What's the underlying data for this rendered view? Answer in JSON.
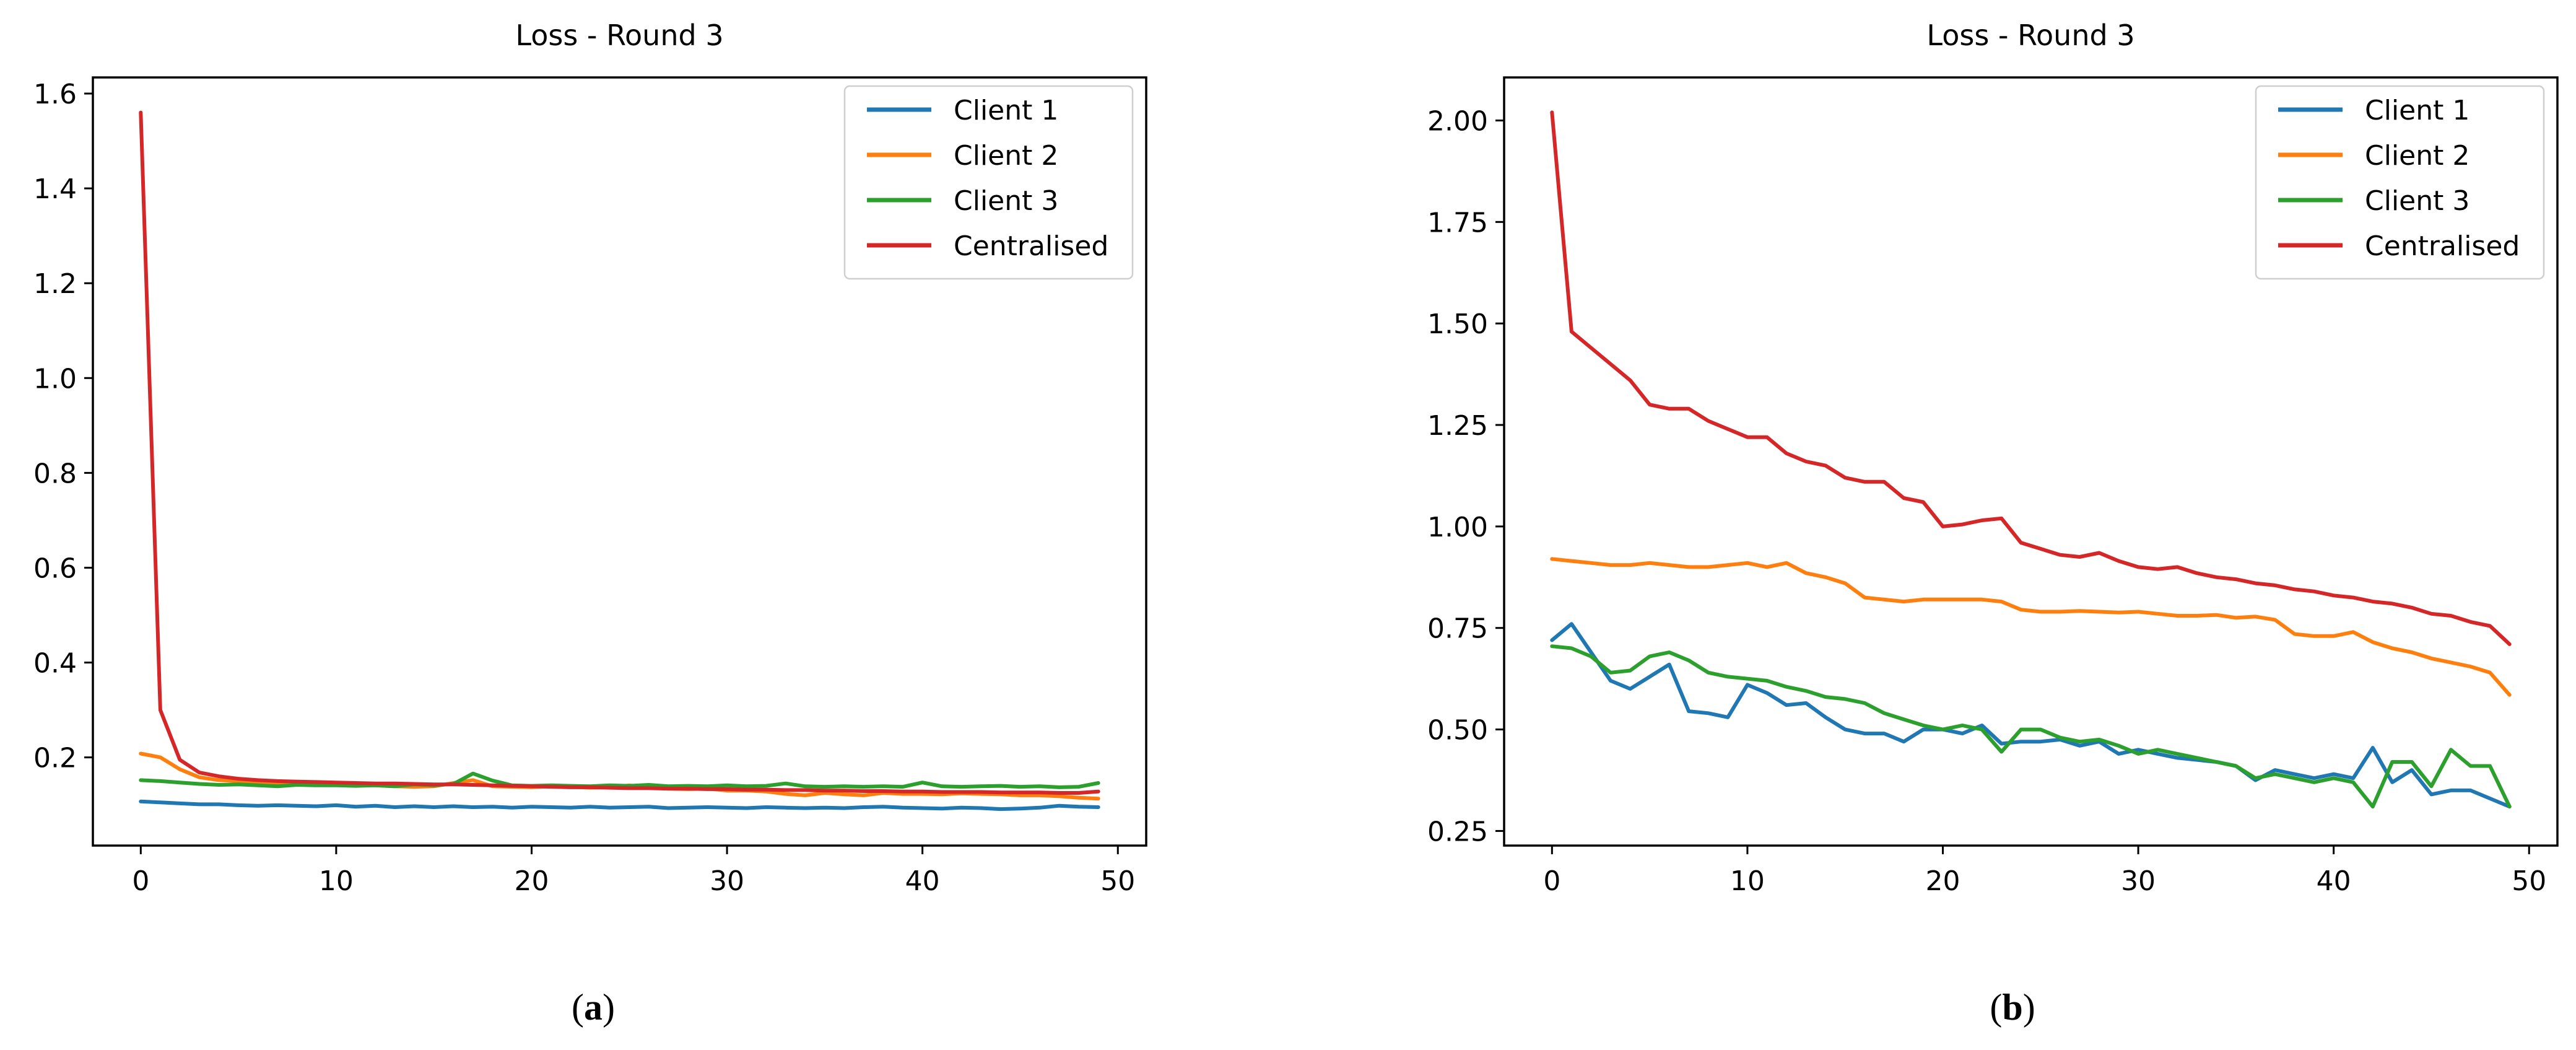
{
  "page": {
    "background": "#ffffff"
  },
  "captions": [
    {
      "pre": "(",
      "letter": "a",
      "post": ")"
    },
    {
      "pre": "(",
      "letter": "b",
      "post": ")"
    }
  ],
  "chart_data": [
    {
      "type": "line",
      "panel": "a",
      "title": "Loss - Round 3",
      "xlabel": "",
      "ylabel": "",
      "grid": false,
      "legend": {
        "position": "upper right",
        "entries": [
          "Client 1",
          "Client 2",
          "Client 3",
          "Centralised"
        ]
      },
      "xlim": [
        -2.45,
        51.45
      ],
      "ylim": [
        0.014,
        1.634
      ],
      "x_ticks": [
        0,
        10,
        20,
        30,
        40,
        50
      ],
      "y_ticks": [
        0.2,
        0.4,
        0.6,
        0.8,
        1.0,
        1.2,
        1.4,
        1.6
      ],
      "y_tick_decimals": 1,
      "x": [
        0,
        1,
        2,
        3,
        4,
        5,
        6,
        7,
        8,
        9,
        10,
        11,
        12,
        13,
        14,
        15,
        16,
        17,
        18,
        19,
        20,
        21,
        22,
        23,
        24,
        25,
        26,
        27,
        28,
        29,
        30,
        31,
        32,
        33,
        34,
        35,
        36,
        37,
        38,
        39,
        40,
        41,
        42,
        43,
        44,
        45,
        46,
        47,
        48,
        49
      ],
      "series": [
        {
          "name": "Client 1",
          "color": "#1f77b4",
          "values": [
            0.107,
            0.105,
            0.103,
            0.101,
            0.101,
            0.099,
            0.098,
            0.099,
            0.098,
            0.097,
            0.099,
            0.096,
            0.098,
            0.095,
            0.097,
            0.095,
            0.097,
            0.095,
            0.096,
            0.094,
            0.096,
            0.095,
            0.094,
            0.096,
            0.094,
            0.095,
            0.096,
            0.093,
            0.094,
            0.095,
            0.094,
            0.093,
            0.095,
            0.094,
            0.093,
            0.094,
            0.093,
            0.095,
            0.096,
            0.094,
            0.093,
            0.092,
            0.094,
            0.093,
            0.091,
            0.092,
            0.094,
            0.098,
            0.096,
            0.095
          ]
        },
        {
          "name": "Client 2",
          "color": "#ff7f0e",
          "values": [
            0.208,
            0.2,
            0.175,
            0.158,
            0.152,
            0.15,
            0.148,
            0.146,
            0.145,
            0.144,
            0.143,
            0.142,
            0.141,
            0.139,
            0.138,
            0.139,
            0.146,
            0.152,
            0.139,
            0.138,
            0.137,
            0.139,
            0.138,
            0.136,
            0.137,
            0.141,
            0.136,
            0.134,
            0.133,
            0.134,
            0.13,
            0.13,
            0.128,
            0.123,
            0.12,
            0.125,
            0.122,
            0.12,
            0.125,
            0.123,
            0.123,
            0.122,
            0.124,
            0.123,
            0.122,
            0.12,
            0.12,
            0.118,
            0.115,
            0.113
          ]
        },
        {
          "name": "Client 3",
          "color": "#2ca02c",
          "values": [
            0.152,
            0.15,
            0.147,
            0.144,
            0.142,
            0.143,
            0.141,
            0.139,
            0.142,
            0.141,
            0.141,
            0.14,
            0.141,
            0.139,
            0.143,
            0.141,
            0.144,
            0.166,
            0.151,
            0.141,
            0.14,
            0.141,
            0.14,
            0.139,
            0.141,
            0.14,
            0.142,
            0.139,
            0.14,
            0.139,
            0.141,
            0.139,
            0.14,
            0.145,
            0.139,
            0.138,
            0.139,
            0.138,
            0.139,
            0.138,
            0.147,
            0.139,
            0.138,
            0.139,
            0.14,
            0.138,
            0.139,
            0.137,
            0.138,
            0.146
          ]
        },
        {
          "name": "Centralised",
          "color": "#d62728",
          "values": [
            1.56,
            0.3,
            0.195,
            0.168,
            0.16,
            0.155,
            0.152,
            0.15,
            0.149,
            0.148,
            0.147,
            0.146,
            0.145,
            0.145,
            0.144,
            0.143,
            0.143,
            0.142,
            0.141,
            0.14,
            0.139,
            0.138,
            0.137,
            0.137,
            0.136,
            0.135,
            0.135,
            0.134,
            0.134,
            0.133,
            0.133,
            0.132,
            0.132,
            0.131,
            0.131,
            0.13,
            0.13,
            0.129,
            0.129,
            0.128,
            0.128,
            0.127,
            0.127,
            0.127,
            0.126,
            0.126,
            0.126,
            0.125,
            0.125,
            0.128
          ]
        }
      ]
    },
    {
      "type": "line",
      "panel": "b",
      "title": "Loss - Round 3",
      "xlabel": "",
      "ylabel": "",
      "grid": false,
      "legend": {
        "position": "upper right",
        "entries": [
          "Client 1",
          "Client 2",
          "Client 3",
          "Centralised"
        ]
      },
      "xlim": [
        -2.45,
        51.45
      ],
      "ylim": [
        0.214,
        2.106
      ],
      "x_ticks": [
        0,
        10,
        20,
        30,
        40,
        50
      ],
      "y_ticks": [
        0.25,
        0.5,
        0.75,
        1.0,
        1.25,
        1.5,
        1.75,
        2.0
      ],
      "y_tick_decimals": 2,
      "x": [
        0,
        1,
        2,
        3,
        4,
        5,
        6,
        7,
        8,
        9,
        10,
        11,
        12,
        13,
        14,
        15,
        16,
        17,
        18,
        19,
        20,
        21,
        22,
        23,
        24,
        25,
        26,
        27,
        28,
        29,
        30,
        31,
        32,
        33,
        34,
        35,
        36,
        37,
        38,
        39,
        40,
        41,
        42,
        43,
        44,
        45,
        46,
        47,
        48,
        49
      ],
      "series": [
        {
          "name": "Client 1",
          "color": "#1f77b4",
          "values": [
            0.72,
            0.76,
            0.69,
            0.62,
            0.6,
            0.63,
            0.66,
            0.545,
            0.54,
            0.53,
            0.61,
            0.59,
            0.56,
            0.565,
            0.53,
            0.5,
            0.49,
            0.49,
            0.47,
            0.5,
            0.5,
            0.49,
            0.51,
            0.465,
            0.47,
            0.47,
            0.475,
            0.46,
            0.47,
            0.44,
            0.45,
            0.44,
            0.43,
            0.425,
            0.42,
            0.41,
            0.375,
            0.4,
            0.39,
            0.38,
            0.39,
            0.38,
            0.455,
            0.37,
            0.4,
            0.34,
            0.35,
            0.35,
            0.33,
            0.31
          ]
        },
        {
          "name": "Client 2",
          "color": "#ff7f0e",
          "values": [
            0.92,
            0.915,
            0.91,
            0.905,
            0.905,
            0.91,
            0.905,
            0.9,
            0.9,
            0.905,
            0.91,
            0.9,
            0.91,
            0.885,
            0.875,
            0.86,
            0.825,
            0.82,
            0.815,
            0.82,
            0.82,
            0.82,
            0.82,
            0.815,
            0.795,
            0.79,
            0.79,
            0.792,
            0.79,
            0.788,
            0.79,
            0.785,
            0.78,
            0.78,
            0.782,
            0.775,
            0.778,
            0.77,
            0.735,
            0.73,
            0.73,
            0.74,
            0.715,
            0.7,
            0.69,
            0.675,
            0.665,
            0.655,
            0.64,
            0.585
          ]
        },
        {
          "name": "Client 3",
          "color": "#2ca02c",
          "values": [
            0.705,
            0.7,
            0.68,
            0.64,
            0.645,
            0.68,
            0.69,
            0.67,
            0.64,
            0.63,
            0.625,
            0.62,
            0.605,
            0.595,
            0.58,
            0.575,
            0.565,
            0.54,
            0.525,
            0.51,
            0.5,
            0.51,
            0.5,
            0.445,
            0.5,
            0.5,
            0.48,
            0.47,
            0.475,
            0.46,
            0.44,
            0.45,
            0.44,
            0.43,
            0.42,
            0.41,
            0.38,
            0.39,
            0.38,
            0.37,
            0.38,
            0.37,
            0.31,
            0.42,
            0.42,
            0.36,
            0.45,
            0.41,
            0.41,
            0.31
          ]
        },
        {
          "name": "Centralised",
          "color": "#d62728",
          "values": [
            2.02,
            1.48,
            1.44,
            1.4,
            1.36,
            1.3,
            1.29,
            1.29,
            1.26,
            1.24,
            1.22,
            1.22,
            1.18,
            1.16,
            1.15,
            1.12,
            1.11,
            1.11,
            1.07,
            1.06,
            1.0,
            1.005,
            1.015,
            1.02,
            0.96,
            0.945,
            0.93,
            0.925,
            0.935,
            0.915,
            0.9,
            0.895,
            0.9,
            0.885,
            0.875,
            0.87,
            0.86,
            0.855,
            0.845,
            0.84,
            0.83,
            0.825,
            0.815,
            0.81,
            0.8,
            0.785,
            0.78,
            0.765,
            0.755,
            0.71
          ]
        }
      ]
    }
  ]
}
